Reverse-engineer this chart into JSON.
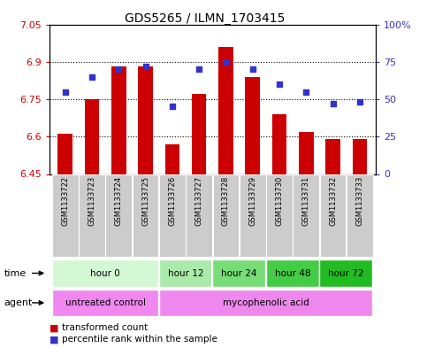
{
  "title": "GDS5265 / ILMN_1703415",
  "samples": [
    "GSM1133722",
    "GSM1133723",
    "GSM1133724",
    "GSM1133725",
    "GSM1133726",
    "GSM1133727",
    "GSM1133728",
    "GSM1133729",
    "GSM1133730",
    "GSM1133731",
    "GSM1133732",
    "GSM1133733"
  ],
  "bar_values": [
    6.61,
    6.75,
    6.88,
    6.88,
    6.57,
    6.77,
    6.96,
    6.84,
    6.69,
    6.62,
    6.59,
    6.59
  ],
  "dot_values": [
    55,
    65,
    70,
    72,
    45,
    70,
    75,
    70,
    60,
    55,
    47,
    48
  ],
  "bar_bottom": 6.45,
  "ylim_left": [
    6.45,
    7.05
  ],
  "ylim_right": [
    0,
    100
  ],
  "yticks_left": [
    6.45,
    6.6,
    6.75,
    6.9,
    7.05
  ],
  "yticks_right": [
    0,
    25,
    50,
    75,
    100
  ],
  "ytick_labels_left": [
    "6.45",
    "6.6",
    "6.75",
    "6.9",
    "7.05"
  ],
  "ytick_labels_right": [
    "0",
    "25",
    "50",
    "75",
    "100%"
  ],
  "bar_color": "#cc0000",
  "dot_color": "#3333cc",
  "time_groups": [
    {
      "label": "hour 0",
      "start": 0,
      "end": 4,
      "color": "#d4f7d4"
    },
    {
      "label": "hour 12",
      "start": 4,
      "end": 6,
      "color": "#aaeaaa"
    },
    {
      "label": "hour 24",
      "start": 6,
      "end": 8,
      "color": "#77dd77"
    },
    {
      "label": "hour 48",
      "start": 8,
      "end": 10,
      "color": "#44cc44"
    },
    {
      "label": "hour 72",
      "start": 10,
      "end": 12,
      "color": "#22bb22"
    }
  ],
  "agent_groups": [
    {
      "label": "untreated control",
      "start": 0,
      "end": 4,
      "color": "#f088f0"
    },
    {
      "label": "mycophenolic acid",
      "start": 4,
      "end": 12,
      "color": "#ee88ee"
    }
  ],
  "legend_items": [
    {
      "label": "transformed count",
      "color": "#cc0000"
    },
    {
      "label": "percentile rank within the sample",
      "color": "#3333cc"
    }
  ],
  "xlabel_time": "time",
  "xlabel_agent": "agent",
  "sample_bg_color": "#cccccc",
  "grid_color": "#000000"
}
